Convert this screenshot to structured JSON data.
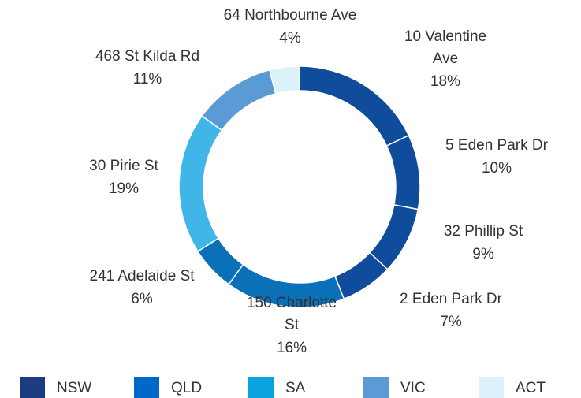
{
  "chart_data": {
    "type": "donut",
    "categories": [
      "10 Valentine Ave",
      "5 Eden Park Dr",
      "32 Phillip St",
      "2 Eden Park Dr",
      "150 Charlotte St",
      "241 Adelaide St",
      "30 Pirie St",
      "468 St Kilda Rd",
      "64 Northbourne Ave"
    ],
    "values": [
      18,
      10,
      9,
      7,
      16,
      6,
      19,
      11,
      4
    ],
    "value_labels": [
      "18%",
      "10%",
      "9%",
      "7%",
      "16%",
      "6%",
      "19%",
      "11%",
      "4%"
    ],
    "colors": [
      "#0f4c9c",
      "#0f4c9c",
      "#0f4c9c",
      "#0f4c9c",
      "#0a70b8",
      "#0a70b8",
      "#3fb5e8",
      "#5b9bd5",
      "#dcf2fa"
    ],
    "legend": [
      {
        "name": "NSW",
        "color": "#1b3c7e"
      },
      {
        "name": "QLD",
        "color": "#0068c8"
      },
      {
        "name": "SA",
        "color": "#0ba2e0"
      },
      {
        "name": "VIC",
        "color": "#5b9bd5"
      },
      {
        "name": "ACT",
        "color": "#ddf3fb"
      }
    ]
  }
}
